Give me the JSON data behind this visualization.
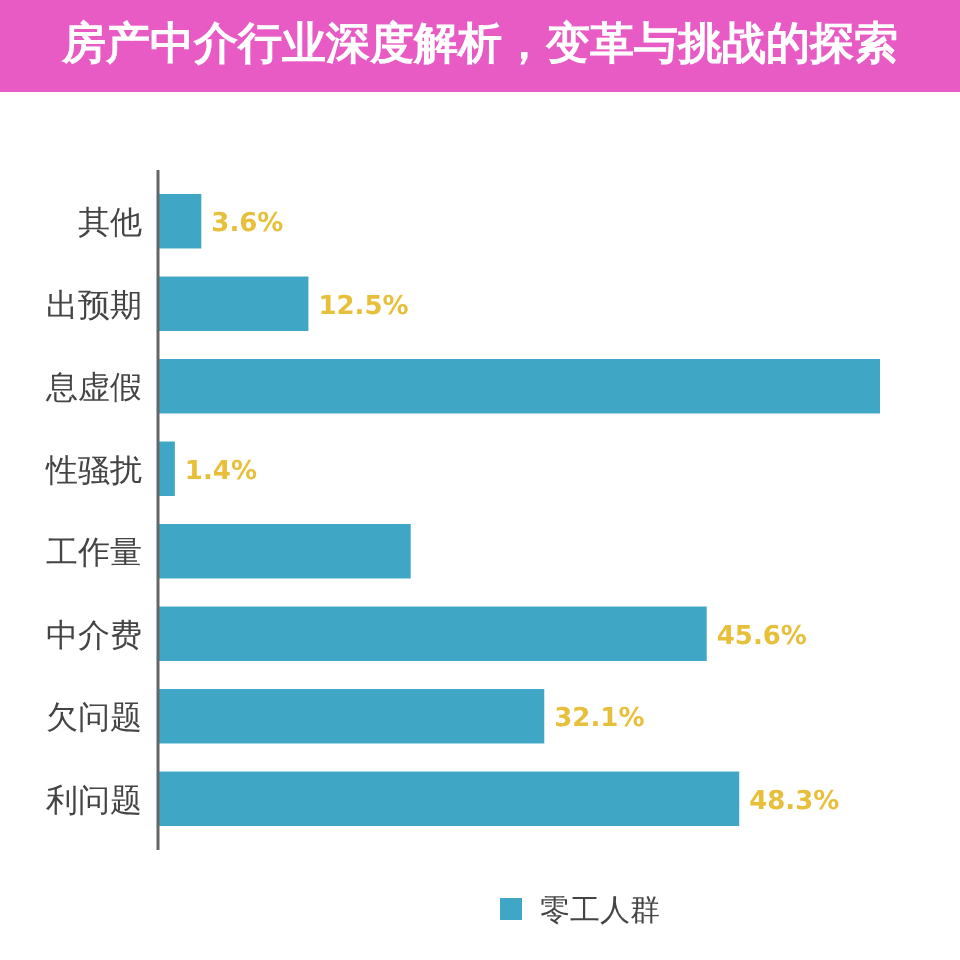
{
  "chart_data": {
    "type": "bar",
    "orientation": "horizontal",
    "title": "房产中介行业深度解析，变革与挑战的探索",
    "categories": [
      "其他",
      "出预期",
      "息虚假",
      "性骚扰",
      "工作量",
      "中介费",
      "欠问题",
      "利问题"
    ],
    "series": [
      {
        "name": "零工人群",
        "color": "#3fa6c6",
        "values": [
          3.6,
          12.5,
          60,
          1.4,
          21,
          45.6,
          32.1,
          48.3
        ],
        "value_labels": [
          "3.6%",
          "12.5%",
          null,
          "1.4%",
          null,
          "45.6%",
          "32.1%",
          "48.3%"
        ]
      }
    ],
    "legend": "bottom"
  }
}
